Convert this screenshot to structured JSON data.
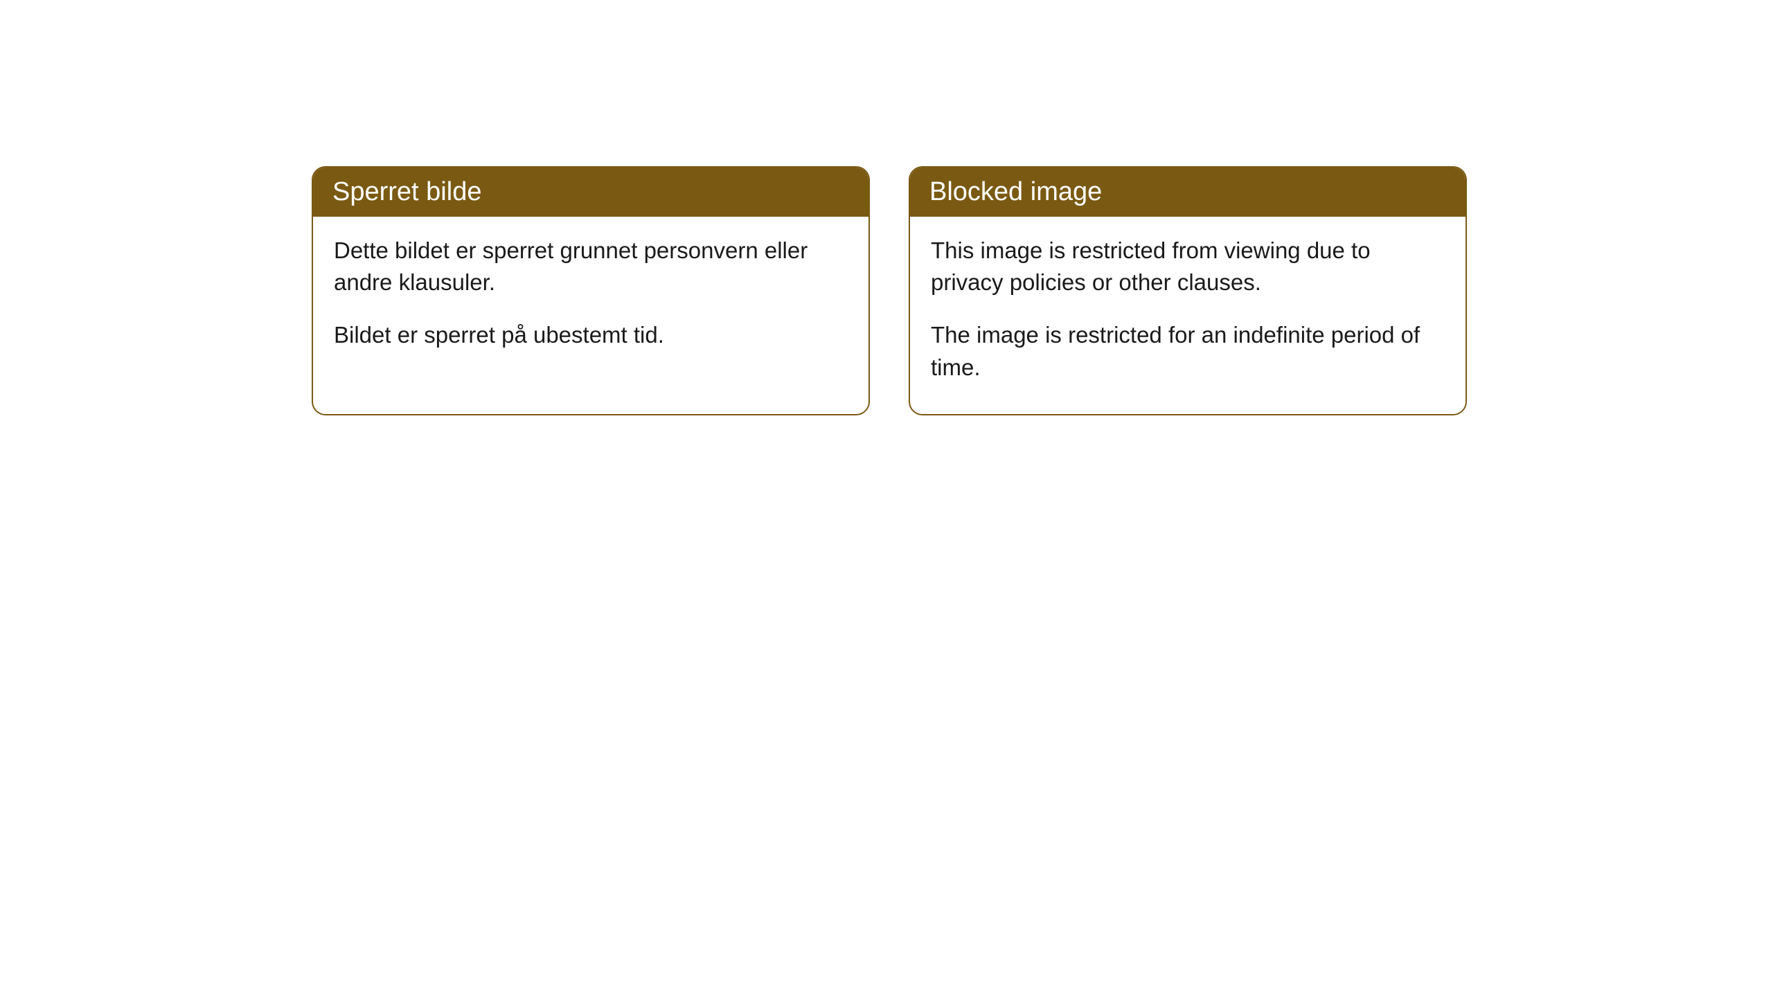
{
  "cards": [
    {
      "title": "Sperret bilde",
      "paragraph1": "Dette bildet er sperret grunnet personvern eller andre klausuler.",
      "paragraph2": "Bildet er sperret på ubestemt tid."
    },
    {
      "title": "Blocked image",
      "paragraph1": "This image is restricted from viewing due to privacy policies or other clauses.",
      "paragraph2": "The image is restricted for an indefinite period of time."
    }
  ],
  "style": {
    "header_bg_color": "#7a5a13",
    "header_text_color": "#ffffff",
    "border_color": "#7a5a13",
    "body_bg_color": "#ffffff",
    "body_text_color": "#1a1a1a",
    "border_radius": 20,
    "header_fontsize": 38,
    "body_fontsize": 33
  }
}
